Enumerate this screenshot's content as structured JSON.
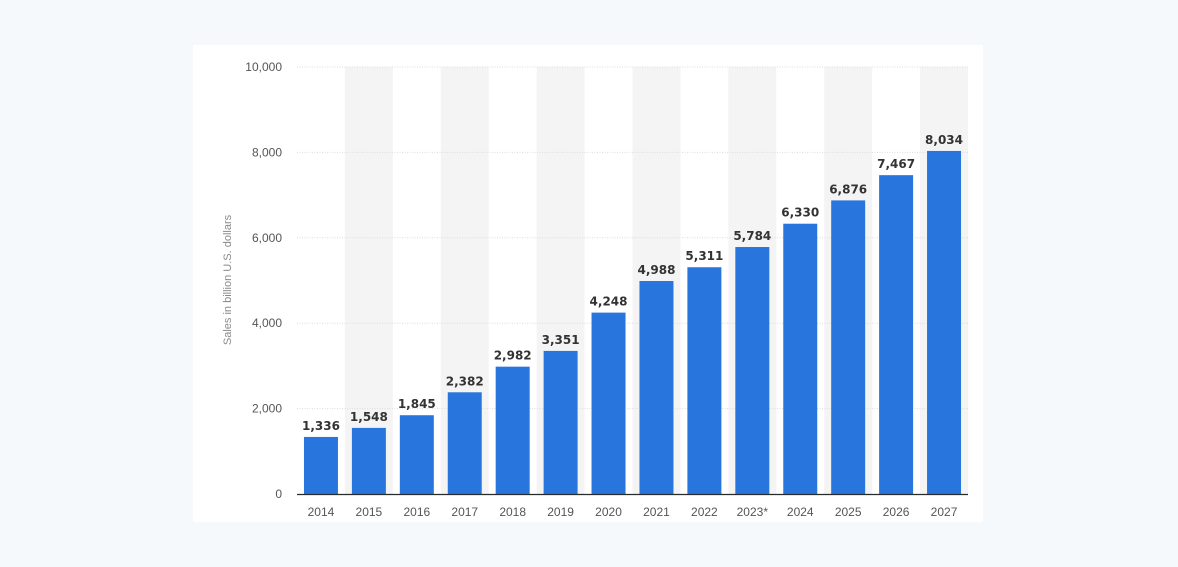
{
  "chart_data": {
    "type": "bar",
    "categories": [
      "2014",
      "2015",
      "2016",
      "2017",
      "2018",
      "2019",
      "2020",
      "2021",
      "2022",
      "2023*",
      "2024",
      "2025",
      "2026",
      "2027"
    ],
    "values": [
      1336,
      1548,
      1845,
      2382,
      2982,
      3351,
      4248,
      4988,
      5311,
      5784,
      6330,
      6876,
      7467,
      8034
    ],
    "data_labels": [
      "1,336",
      "1,548",
      "1,845",
      "2,382",
      "2,982",
      "3,351",
      "4,248",
      "4,988",
      "5,311",
      "5,784",
      "6,330",
      "6,876",
      "7,467",
      "8,034"
    ],
    "title": "",
    "xlabel": "",
    "ylabel": "Sales in billion U.S. dollars",
    "ylim": [
      0,
      10000
    ],
    "yticks": [
      0,
      2000,
      4000,
      6000,
      8000,
      10000
    ],
    "ytick_labels": [
      "0",
      "2,000",
      "4,000",
      "6,000",
      "8,000",
      "10,000"
    ],
    "grid": true,
    "legend": "none",
    "colors": {
      "bar": "#2876dd",
      "alt_column_band": "#f4f4f4",
      "gridline": "#dcdcdc",
      "axis_line": "#2a2a2a"
    }
  }
}
